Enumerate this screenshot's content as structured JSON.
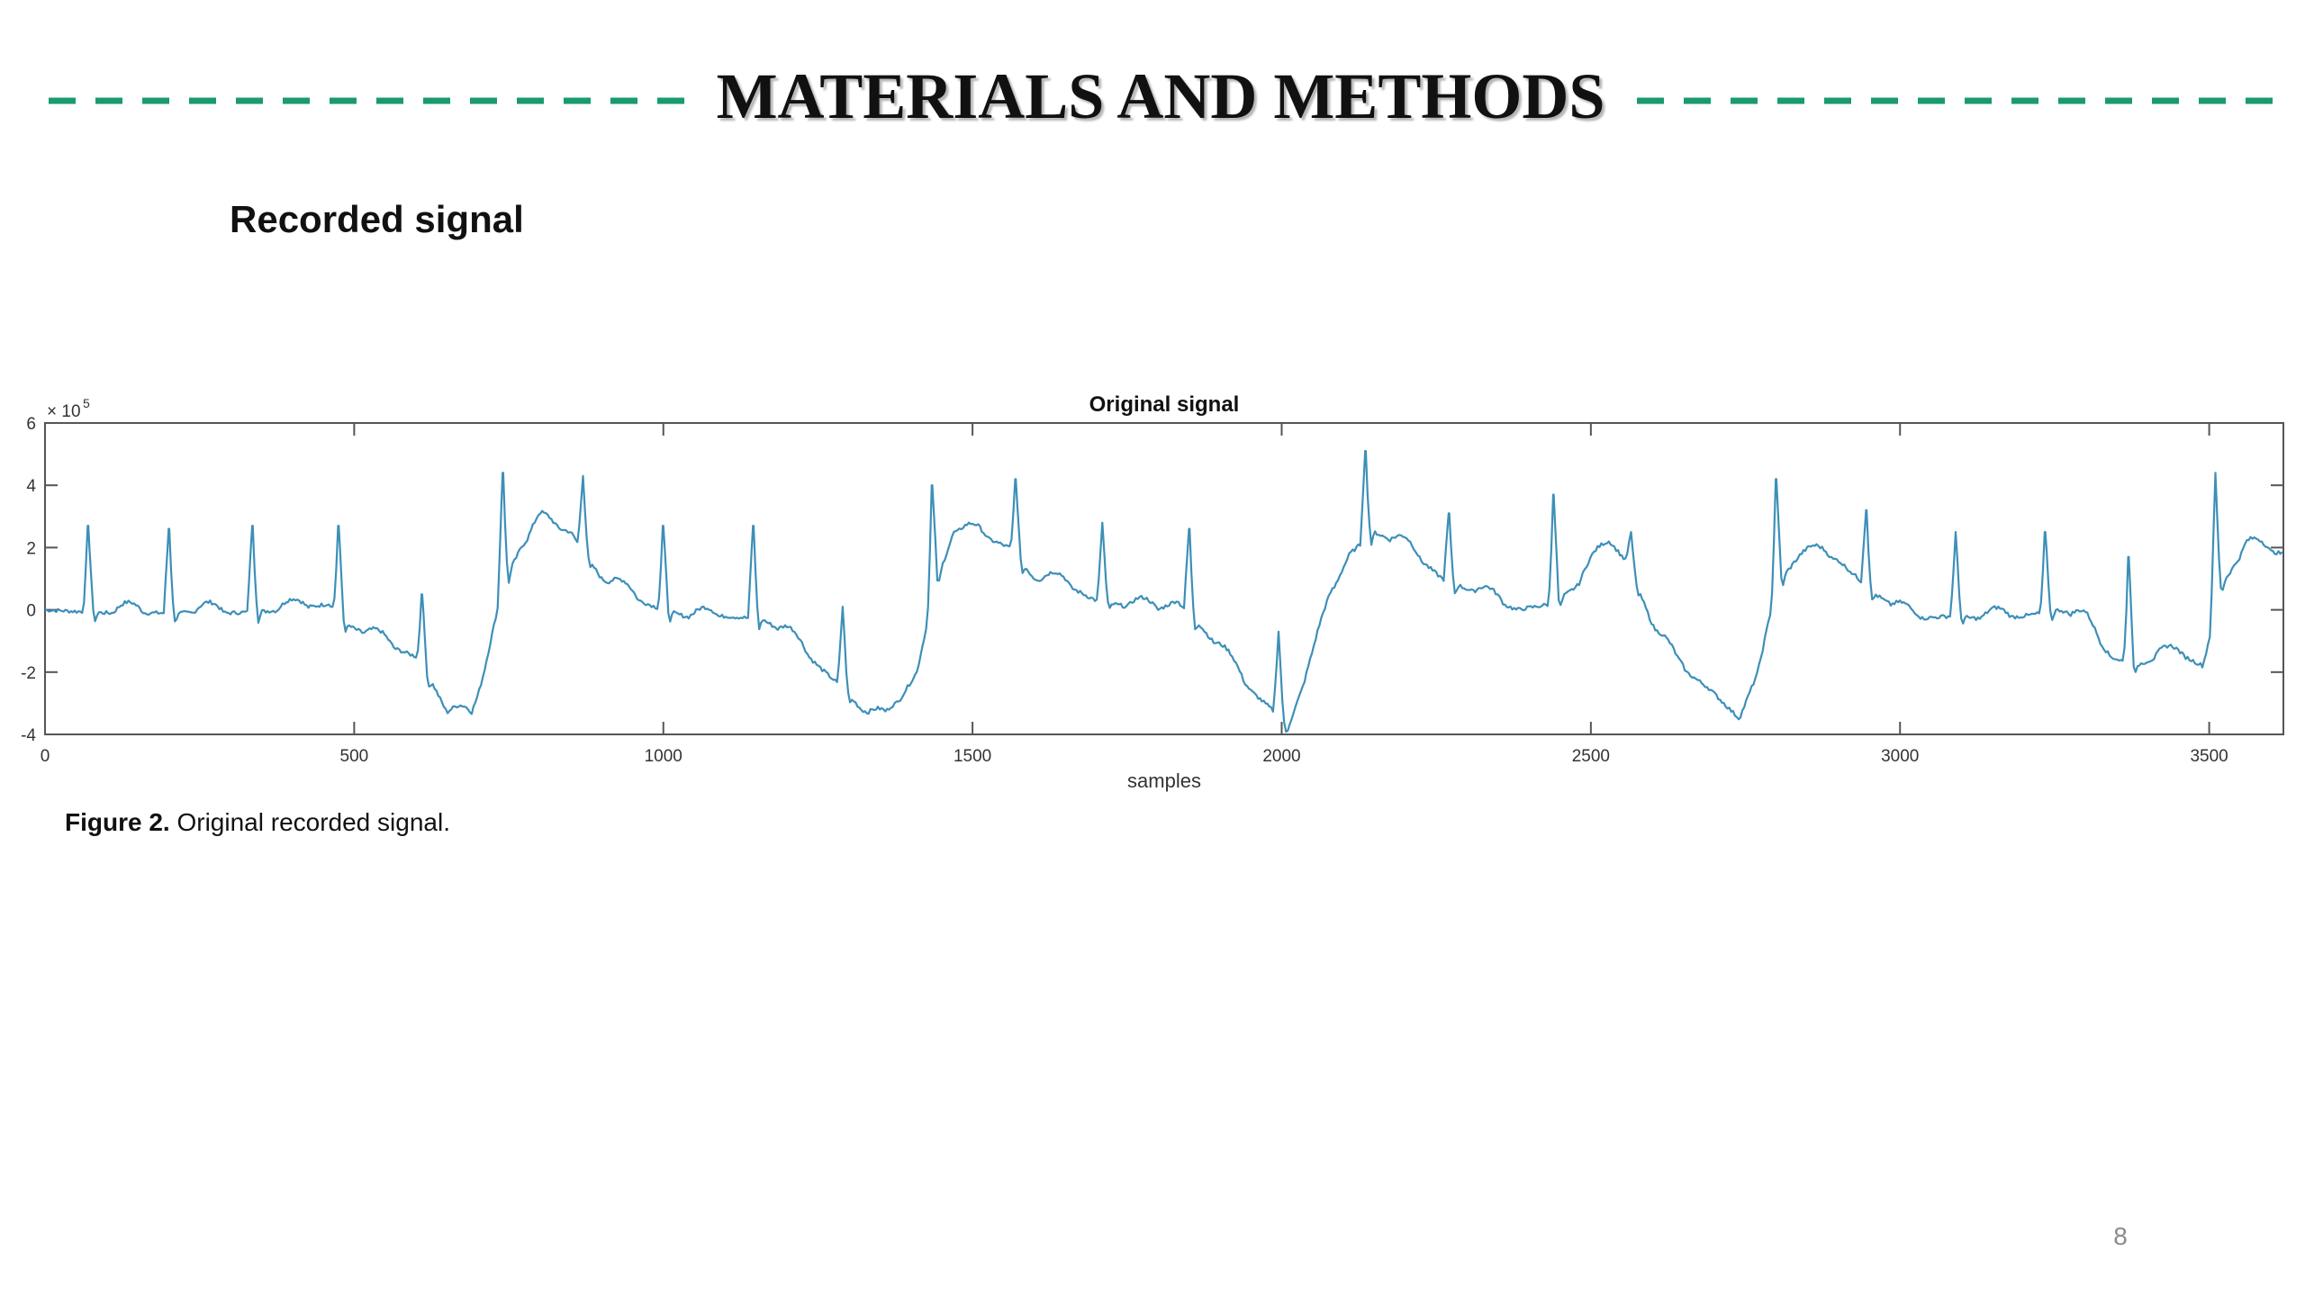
{
  "slide": {
    "title": "MATERIALS AND METHODS",
    "accent_color": "#1a9a6e",
    "section_heading": "Recorded signal",
    "caption_label": "Figure 2.",
    "caption_text": " Original recorded signal.",
    "page_number": "8"
  },
  "chart_data": {
    "type": "line",
    "title": "Original signal",
    "xlabel": "samples",
    "ylabel": "",
    "y_exponent_label": "× 10",
    "y_exponent_power": "5",
    "xlim": [
      0,
      3620
    ],
    "ylim": [
      -4,
      6
    ],
    "x_ticks": [
      0,
      500,
      1000,
      1500,
      2000,
      2500,
      3000,
      3500
    ],
    "y_ticks": [
      -4,
      -2,
      0,
      2,
      4,
      6
    ],
    "grid": false,
    "line_color": "#3d8fb8",
    "series": [
      {
        "baseline": [
          [
            0,
            0
          ],
          [
            100,
            -0.1
          ],
          [
            200,
            -0.1
          ],
          [
            300,
            -0.1
          ],
          [
            400,
            0
          ],
          [
            460,
            0.2
          ],
          [
            490,
            -0.5
          ],
          [
            520,
            -0.8
          ],
          [
            560,
            -1.2
          ],
          [
            600,
            -1.5
          ],
          [
            630,
            -2.5
          ],
          [
            650,
            -3.3
          ],
          [
            690,
            -3.5
          ],
          [
            710,
            -2.0
          ],
          [
            740,
            0.8
          ],
          [
            770,
            2.0
          ],
          [
            800,
            2.8
          ],
          [
            850,
            2.5
          ],
          [
            900,
            1.0
          ],
          [
            960,
            0.3
          ],
          [
            1000,
            0.0
          ],
          [
            1050,
            -0.3
          ],
          [
            1100,
            -0.2
          ],
          [
            1160,
            -0.3
          ],
          [
            1200,
            -0.8
          ],
          [
            1250,
            -1.8
          ],
          [
            1290,
            -2.5
          ],
          [
            1320,
            -3.2
          ],
          [
            1360,
            -3.6
          ],
          [
            1410,
            -2.0
          ],
          [
            1440,
            0.8
          ],
          [
            1470,
            2.5
          ],
          [
            1510,
            2.4
          ],
          [
            1560,
            2.0
          ],
          [
            1600,
            1.0
          ],
          [
            1650,
            0.8
          ],
          [
            1700,
            0.3
          ],
          [
            1750,
            0.1
          ],
          [
            1800,
            0.0
          ],
          [
            1830,
            0.3
          ],
          [
            1860,
            -0.3
          ],
          [
            1900,
            -1.3
          ],
          [
            1950,
            -2.6
          ],
          [
            1990,
            -3.3
          ],
          [
            2010,
            -3.8
          ],
          [
            2050,
            -1.6
          ],
          [
            2080,
            0.5
          ],
          [
            2110,
            1.8
          ],
          [
            2150,
            2.5
          ],
          [
            2200,
            2.0
          ],
          [
            2260,
            1.0
          ],
          [
            2320,
            0.5
          ],
          [
            2380,
            0.0
          ],
          [
            2440,
            0.2
          ],
          [
            2480,
            0.8
          ],
          [
            2530,
            2.2
          ],
          [
            2560,
            1.5
          ],
          [
            2600,
            -0.5
          ],
          [
            2640,
            -1.8
          ],
          [
            2690,
            -2.5
          ],
          [
            2740,
            -3.5
          ],
          [
            2770,
            -2.0
          ],
          [
            2800,
            0.8
          ],
          [
            2840,
            1.8
          ],
          [
            2900,
            1.6
          ],
          [
            2960,
            0.5
          ],
          [
            3020,
            -0.3
          ],
          [
            3080,
            -0.2
          ],
          [
            3140,
            -0.3
          ],
          [
            3200,
            -0.2
          ],
          [
            3260,
            0.0
          ],
          [
            3300,
            -0.4
          ],
          [
            3340,
            -1.5
          ],
          [
            3380,
            -1.8
          ],
          [
            3420,
            -1.5
          ],
          [
            3460,
            -1.5
          ],
          [
            3490,
            -1.8
          ],
          [
            3520,
            0.8
          ],
          [
            3560,
            2.0
          ],
          [
            3620,
            1.8
          ]
        ],
        "peaks": [
          [
            70,
            2.7
          ],
          [
            200,
            2.6
          ],
          [
            335,
            2.7
          ],
          [
            475,
            2.7
          ],
          [
            610,
            0.5
          ],
          [
            740,
            4.4
          ],
          [
            870,
            4.3
          ],
          [
            1000,
            2.7
          ],
          [
            1145,
            2.7
          ],
          [
            1290,
            0.1
          ],
          [
            1435,
            4.0
          ],
          [
            1570,
            4.2
          ],
          [
            1710,
            2.8
          ],
          [
            1850,
            2.6
          ],
          [
            1995,
            -0.7
          ],
          [
            2135,
            5.1
          ],
          [
            2270,
            3.1
          ],
          [
            2440,
            3.7
          ],
          [
            2565,
            2.5
          ],
          [
            2800,
            4.2
          ],
          [
            2945,
            3.2
          ],
          [
            3090,
            2.5
          ],
          [
            3235,
            2.5
          ],
          [
            3370,
            1.7
          ],
          [
            3510,
            4.4
          ]
        ]
      }
    ]
  }
}
